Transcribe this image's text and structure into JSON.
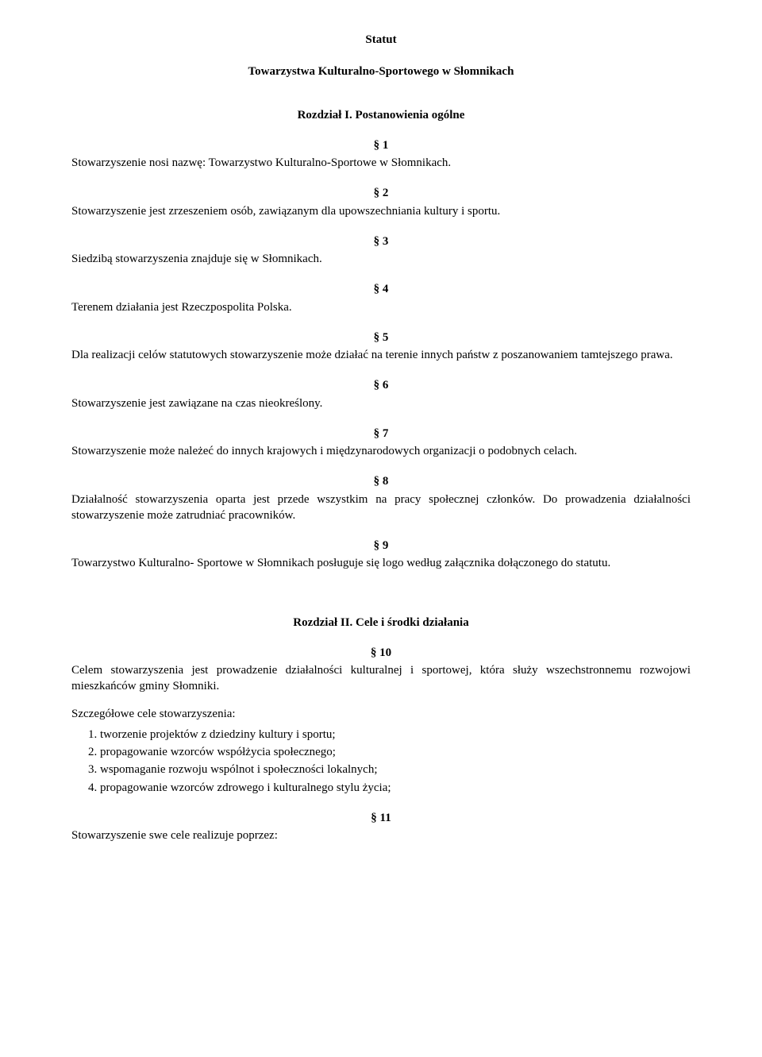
{
  "title": {
    "line1": "Statut",
    "line2": "Towarzystwa Kulturalno-Sportowego w Słomnikach"
  },
  "chapter1_heading": "Rozdział I. Postanowienia ogólne",
  "s1": {
    "num": "§ 1",
    "text": "Stowarzyszenie nosi nazwę: Towarzystwo Kulturalno-Sportowe w Słomnikach."
  },
  "s2": {
    "num": "§ 2",
    "text": "Stowarzyszenie jest zrzeszeniem osób, zawiązanym dla upowszechniania kultury i sportu."
  },
  "s3": {
    "num": "§ 3",
    "text": "Siedzibą stowarzyszenia znajduje się w Słomnikach."
  },
  "s4": {
    "num": "§ 4",
    "text": "Terenem działania jest Rzeczpospolita Polska."
  },
  "s5": {
    "num": "§ 5",
    "text": "Dla realizacji celów statutowych stowarzyszenie może działać na terenie innych państw z poszanowaniem tamtejszego prawa."
  },
  "s6": {
    "num": "§ 6",
    "text": "Stowarzyszenie jest zawiązane na czas nieokreślony."
  },
  "s7": {
    "num": "§ 7",
    "text": "Stowarzyszenie może należeć do innych krajowych i międzynarodowych organizacji o podobnych celach."
  },
  "s8": {
    "num": "§ 8",
    "text": "Działalność stowarzyszenia oparta jest przede wszystkim na pracy społecznej członków. Do prowadzenia działalności stowarzyszenie może zatrudniać pracowników."
  },
  "s9": {
    "num": "§ 9",
    "text": "Towarzystwo Kulturalno- Sportowe w Słomnikach posługuje się logo według załącznika dołączonego do statutu."
  },
  "chapter2_heading": "Rozdział II. Cele i środki działania",
  "s10": {
    "num": "§ 10",
    "text": "Celem stowarzyszenia jest prowadzenie działalności kulturalnej i sportowej, która służy wszechstronnemu rozwojowi mieszkańców gminy Słomniki.",
    "subhead": "Szczegółowe cele stowarzyszenia:",
    "items": [
      "tworzenie projektów z dziedziny kultury i sportu;",
      "propagowanie wzorców współżycia społecznego;",
      "wspomaganie rozwoju wspólnot i społeczności lokalnych;",
      "propagowanie wzorców zdrowego i kulturalnego stylu życia;"
    ]
  },
  "s11": {
    "num": "§ 11",
    "text": "Stowarzyszenie swe cele realizuje poprzez:"
  }
}
